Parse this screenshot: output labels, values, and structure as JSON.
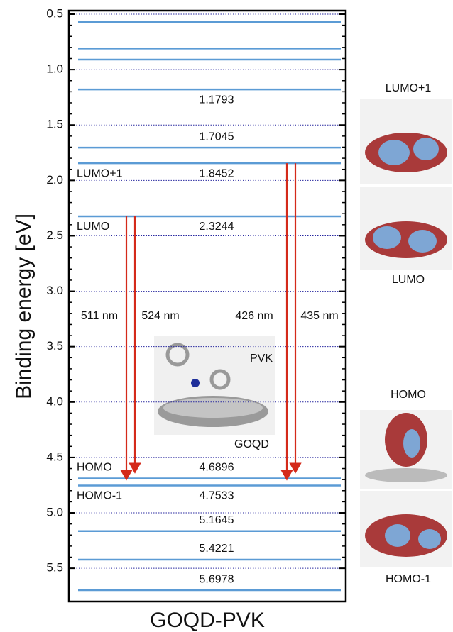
{
  "chart_data": {
    "type": "energy-levels",
    "y_label": "Binding energy [eV]",
    "x_label": "GOQD-PVK",
    "ylim": [
      0.468,
      5.8
    ],
    "y_inverted": true,
    "yticks": [
      0.5,
      {
        "value": 1,
        "label": "1.0"
      },
      1.5,
      {
        "value": 2,
        "label": "2.0"
      },
      2.5,
      {
        "value": 3,
        "label": "3.0"
      },
      3.5,
      {
        "value": 4,
        "label": "4.0"
      },
      4.5,
      {
        "value": 5,
        "label": "5.0"
      },
      5.5
    ],
    "grid": true,
    "grid_color": "#2a2aa0",
    "level_color": "#5b9bd5",
    "values": [
      0.57,
      0.81,
      0.91,
      1.1793,
      1.7045,
      1.8452,
      2.3244,
      4.6896,
      4.7533,
      5.1645,
      5.4221,
      5.6978
    ],
    "value_labels": [
      null,
      null,
      null,
      "1.1793",
      "1.7045",
      "1.8452",
      "2.3244",
      "4.6896",
      "4.7533",
      "5.1645",
      "5.4221",
      "5.6978"
    ],
    "orbital_labels": [
      null,
      null,
      null,
      null,
      null,
      "LUMO+1",
      "LUMO",
      "HOMO",
      "HOMO-1",
      null,
      null,
      null
    ],
    "transition_color": "#d42a1a",
    "transitions": [
      {
        "label": "511 nm",
        "from": 2.3244,
        "to": 4.7533
      },
      {
        "label": "524 nm",
        "from": 2.3244,
        "to": 4.6896
      },
      {
        "label": "426 nm",
        "from": 1.8452,
        "to": 4.7533
      },
      {
        "label": "435 nm",
        "from": 1.8452,
        "to": 4.6896
      }
    ],
    "inset_labels": [
      "PVK",
      "GOQD"
    ],
    "orbital_images": [
      "LUMO+1",
      "LUMO",
      "HOMO",
      "HOMO-1"
    ]
  }
}
